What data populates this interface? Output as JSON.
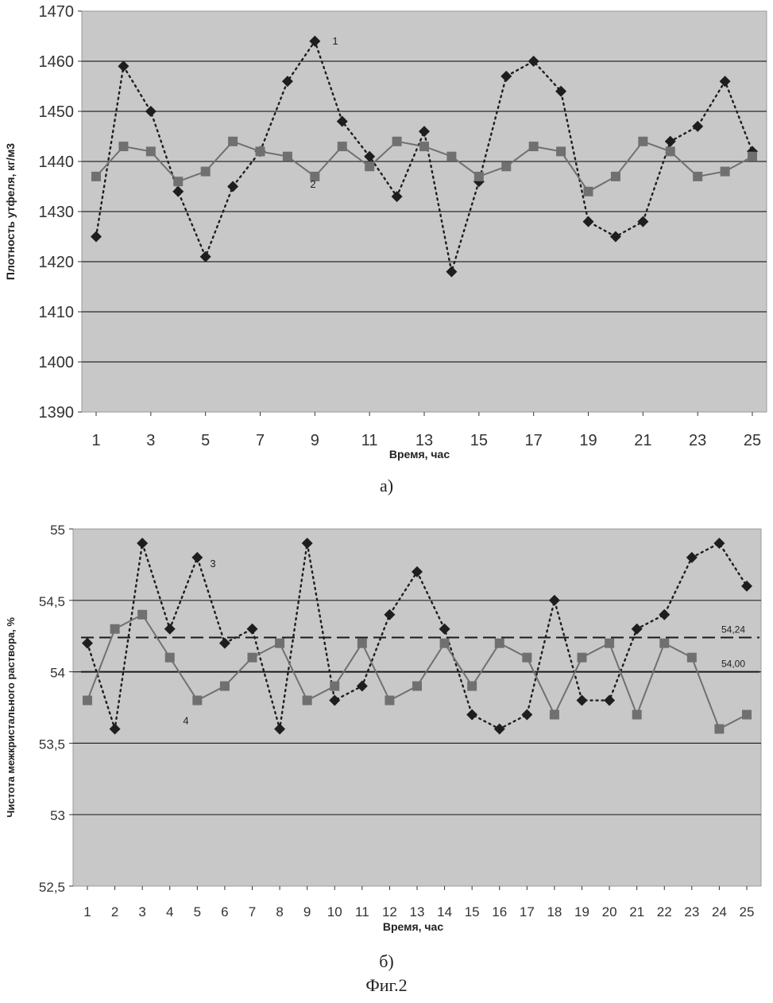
{
  "figure_label": "Фиг.2",
  "chart_data": [
    {
      "type": "line",
      "caption": "а)",
      "xlabel": "Время, час",
      "ylabel": "Плотность утфеля, кг/м3",
      "ylim": [
        1390,
        1470
      ],
      "yticks": [
        "1390",
        "1400",
        "1410",
        "1420",
        "1430",
        "1440",
        "1450",
        "1460",
        "1470"
      ],
      "xticks": [
        "1",
        "3",
        "5",
        "7",
        "9",
        "11",
        "13",
        "15",
        "17",
        "19",
        "21",
        "23",
        "25"
      ],
      "x": [
        1,
        2,
        3,
        4,
        5,
        6,
        7,
        8,
        9,
        10,
        11,
        12,
        13,
        14,
        15,
        16,
        17,
        18,
        19,
        20,
        21,
        22,
        23,
        24,
        25
      ],
      "grid": true,
      "series": [
        {
          "name": "1",
          "style": "dotted",
          "marker": "diamond",
          "color": "#1e1e1e",
          "values": [
            1425,
            1459,
            1450,
            1434,
            1421,
            1435,
            1442,
            1456,
            1464,
            1448,
            1441,
            1433,
            1446,
            1418,
            1436,
            1457,
            1460,
            1454,
            1428,
            1425,
            1428,
            1444,
            1447,
            1456,
            1442
          ]
        },
        {
          "name": "2",
          "style": "solid",
          "marker": "square",
          "color": "#707070",
          "values": [
            1437,
            1443,
            1442,
            1436,
            1438,
            1444,
            1442,
            1441,
            1437,
            1443,
            1439,
            1444,
            1443,
            1441,
            1437,
            1439,
            1443,
            1442,
            1434,
            1437,
            1444,
            1442,
            1437,
            1438,
            1441
          ]
        }
      ]
    },
    {
      "type": "line",
      "caption": "б)",
      "xlabel": "Время, час",
      "ylabel": "Чистота межкристального раствора, %",
      "ylim": [
        52.5,
        55
      ],
      "yticks": [
        "52,5",
        "53",
        "53,5",
        "54",
        "54,5",
        "55"
      ],
      "xticks": [
        "1",
        "2",
        "3",
        "4",
        "5",
        "6",
        "7",
        "8",
        "9",
        "10",
        "11",
        "12",
        "13",
        "14",
        "15",
        "16",
        "17",
        "18",
        "19",
        "20",
        "21",
        "22",
        "23",
        "24",
        "25"
      ],
      "x": [
        1,
        2,
        3,
        4,
        5,
        6,
        7,
        8,
        9,
        10,
        11,
        12,
        13,
        14,
        15,
        16,
        17,
        18,
        19,
        20,
        21,
        22,
        23,
        24,
        25
      ],
      "grid": true,
      "series": [
        {
          "name": "3",
          "style": "dotted",
          "marker": "diamond",
          "color": "#1e1e1e",
          "values": [
            54.2,
            53.6,
            54.9,
            54.3,
            54.8,
            54.2,
            54.3,
            53.6,
            54.9,
            53.8,
            53.9,
            54.4,
            54.7,
            54.3,
            53.7,
            53.6,
            53.7,
            54.5,
            53.8,
            53.8,
            54.3,
            54.4,
            54.8,
            54.9,
            54.6
          ]
        },
        {
          "name": "4",
          "style": "solid",
          "marker": "square",
          "color": "#707070",
          "values": [
            53.8,
            54.3,
            54.4,
            54.1,
            53.8,
            53.9,
            54.1,
            54.2,
            53.8,
            53.9,
            54.2,
            53.8,
            53.9,
            54.2,
            53.9,
            54.2,
            54.1,
            53.7,
            54.1,
            54.2,
            53.7,
            54.2,
            54.1,
            53.6,
            53.7
          ]
        }
      ],
      "reference_lines": [
        {
          "value": 54.24,
          "label": "54,24",
          "style": "dashed"
        },
        {
          "value": 54.0,
          "label": "54,00",
          "style": "solid"
        }
      ]
    }
  ]
}
